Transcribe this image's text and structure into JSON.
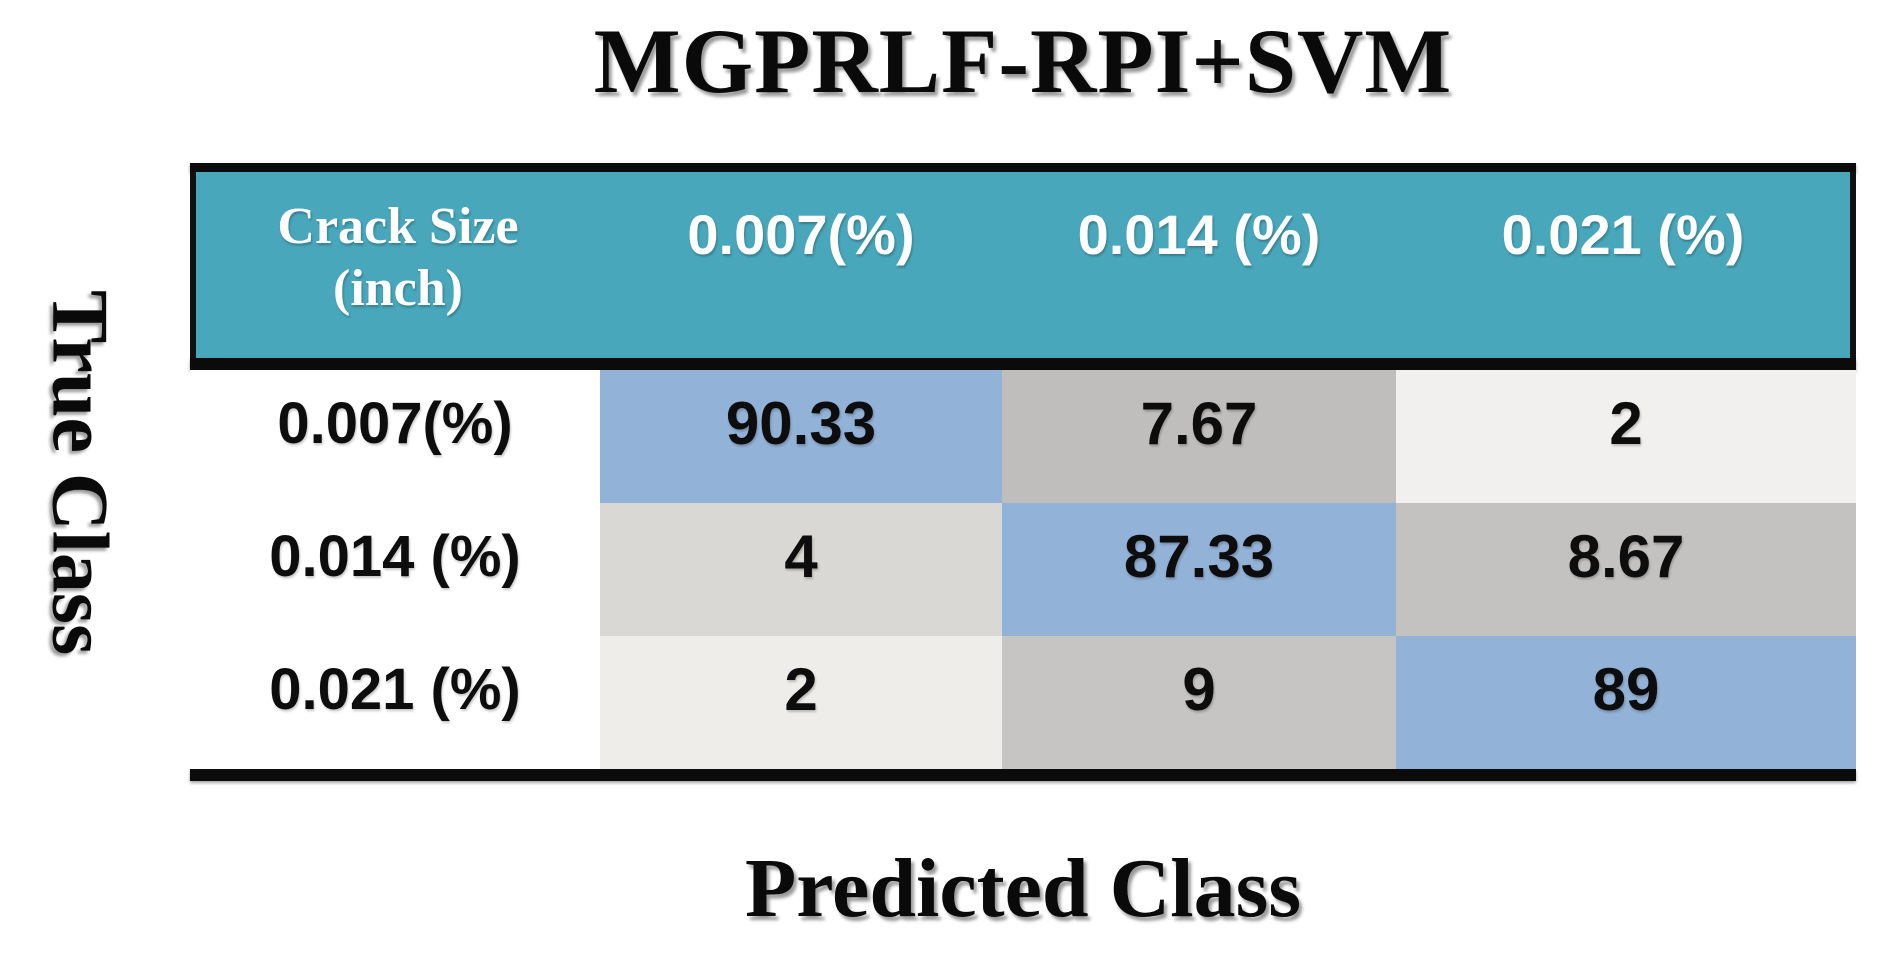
{
  "title": "MGPRLF-RPI+SVM",
  "axes": {
    "y_label": "True Class",
    "x_label": "Predicted Class"
  },
  "colors": {
    "header_bg": "#48A7BB",
    "diagonal_blue": "#93B2D8",
    "border_black": "#0b0b0b",
    "header_text": "#ffffff",
    "body_text": "#0d0d0d"
  },
  "table": {
    "corner": {
      "line1": "Crack Size",
      "line2": "(inch)"
    },
    "columns": [
      "0.007(%)",
      "0.014 (%)",
      "0.021 (%)"
    ],
    "rows": [
      {
        "label": "0.007(%)",
        "cells": [
          {
            "text": "90.33",
            "bg": "#93B2D8"
          },
          {
            "text": "7.67",
            "bg": "#BFBEBC"
          },
          {
            "text": "2",
            "bg": "#F1F0EE"
          }
        ]
      },
      {
        "label": "0.014 (%)",
        "cells": [
          {
            "text": "4",
            "bg": "#DAD8D4"
          },
          {
            "text": "87.33",
            "bg": "#93B2D8"
          },
          {
            "text": "8.67",
            "bg": "#C3C2C0"
          }
        ]
      },
      {
        "label": "0.021 (%)",
        "cells": [
          {
            "text": "2",
            "bg": "#EEEDEA"
          },
          {
            "text": "9",
            "bg": "#C6C5C3"
          },
          {
            "text": "89",
            "bg": "#93B2D8"
          }
        ]
      }
    ]
  },
  "chart_data": {
    "type": "heatmap",
    "title": "MGPRLF-RPI+SVM",
    "xlabel": "Predicted Class",
    "ylabel": "True Class",
    "corner_label": "Crack Size (inch)",
    "x_categories": [
      "0.007(%)",
      "0.014 (%)",
      "0.021 (%)"
    ],
    "y_categories": [
      "0.007(%)",
      "0.014 (%)",
      "0.021 (%)"
    ],
    "values": [
      [
        90.33,
        7.67,
        2
      ],
      [
        4,
        87.33,
        8.67
      ],
      [
        2,
        9,
        89
      ]
    ],
    "units": "percent",
    "legend": "none",
    "notes": "diagonal cells shaded blue, off-diagonal cells shaded gray proportional to value"
  }
}
